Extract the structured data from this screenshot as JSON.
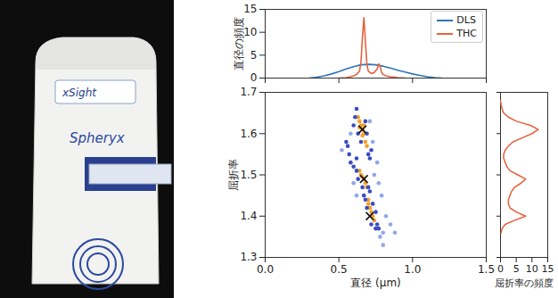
{
  "photo": {
    "brand": "Spheryx",
    "model": "xSight"
  },
  "chart_data": [
    {
      "type": "line",
      "series": [
        {
          "name": "DLS",
          "color": "#2e75b6",
          "x": [
            0.3,
            0.35,
            0.4,
            0.45,
            0.5,
            0.55,
            0.6,
            0.65,
            0.7,
            0.75,
            0.8,
            0.85,
            0.9,
            0.95,
            1.0,
            1.05,
            1.1,
            1.15,
            1.2
          ],
          "values": [
            0.0,
            0.2,
            0.5,
            0.9,
            1.4,
            2.0,
            2.5,
            2.9,
            3.0,
            2.9,
            2.6,
            2.2,
            1.7,
            1.3,
            0.9,
            0.6,
            0.3,
            0.1,
            0.0
          ]
        },
        {
          "name": "THC",
          "color": "#e8603c",
          "x": [
            0.5,
            0.55,
            0.58,
            0.6,
            0.62,
            0.64,
            0.65,
            0.66,
            0.67,
            0.68,
            0.69,
            0.7,
            0.72,
            0.74,
            0.76,
            0.77,
            0.78,
            0.79,
            0.8,
            0.82,
            0.85,
            0.9,
            0.95
          ],
          "values": [
            0.0,
            0.1,
            0.3,
            0.5,
            0.8,
            1.5,
            3.5,
            9.0,
            13.2,
            8.0,
            3.0,
            1.5,
            1.0,
            1.2,
            2.0,
            3.1,
            2.5,
            1.2,
            0.8,
            0.5,
            0.3,
            0.1,
            0.0
          ]
        }
      ],
      "y_label": "直径の頻度",
      "xlim": [
        0,
        1.5
      ],
      "xticks": [
        0,
        0.5,
        1,
        1.5
      ],
      "ylim": [
        0,
        15
      ],
      "yticks": [
        0,
        5,
        10,
        15
      ],
      "legend": "top-right",
      "tick_labels": "y"
    },
    {
      "type": "scatter",
      "x": [
        0.63,
        0.64,
        0.65,
        0.66,
        0.67,
        0.68,
        0.69,
        0.64,
        0.66,
        0.67,
        0.62,
        0.61,
        0.63,
        0.65,
        0.7,
        0.71,
        0.69,
        0.68,
        0.6,
        0.72,
        0.64,
        0.65,
        0.67,
        0.68,
        0.69,
        0.7,
        0.71,
        0.72,
        0.73,
        0.74,
        0.7,
        0.66,
        0.58,
        0.6,
        0.62,
        0.63,
        0.66,
        0.7,
        0.71,
        0.67,
        0.69,
        0.73,
        0.75,
        0.76,
        0.77,
        0.75,
        0.72,
        0.68,
        0.62,
        0.57,
        0.56,
        0.55,
        0.78,
        0.8,
        0.82,
        0.85,
        0.79,
        0.6,
        0.74,
        0.73,
        0.76,
        0.58,
        0.62,
        0.88,
        0.52,
        0.8,
        0.77,
        0.71
      ],
      "y": [
        1.64,
        1.63,
        1.62,
        1.61,
        1.6,
        1.58,
        1.57,
        1.615,
        1.595,
        1.62,
        1.66,
        1.64,
        1.6,
        1.58,
        1.55,
        1.54,
        1.6,
        1.63,
        1.62,
        1.56,
        1.51,
        1.5,
        1.49,
        1.48,
        1.47,
        1.44,
        1.42,
        1.41,
        1.4,
        1.39,
        1.43,
        1.495,
        1.53,
        1.52,
        1.51,
        1.49,
        1.47,
        1.47,
        1.46,
        1.45,
        1.42,
        1.43,
        1.41,
        1.38,
        1.37,
        1.37,
        1.38,
        1.44,
        1.54,
        1.55,
        1.57,
        1.58,
        1.35,
        1.36,
        1.4,
        1.38,
        1.45,
        1.48,
        1.5,
        1.58,
        1.53,
        1.6,
        1.45,
        1.36,
        1.56,
        1.33,
        1.48,
        1.63
      ],
      "colors": [
        "#f0a02c",
        "#f0a02c",
        "#f0a02c",
        "#f0a02c",
        "#f0a02c",
        "#f0a02c",
        "#f0a02c",
        "#f0a02c",
        "#f0a02c",
        "#f0a02c",
        "#3b4cc0",
        "#3b4cc0",
        "#3b4cc0",
        "#3b4cc0",
        "#3b4cc0",
        "#3b4cc0",
        "#3b4cc0",
        "#3b4cc0",
        "#3b4cc0",
        "#3b4cc0",
        "#f0a02c",
        "#f0a02c",
        "#f0a02c",
        "#f0a02c",
        "#f0a02c",
        "#f0a02c",
        "#f0a02c",
        "#f0a02c",
        "#f0a02c",
        "#f0a02c",
        "#f0a02c",
        "#f0a02c",
        "#3b4cc0",
        "#3b4cc0",
        "#3b4cc0",
        "#3b4cc0",
        "#3b4cc0",
        "#3b4cc0",
        "#3b4cc0",
        "#3b4cc0",
        "#3b4cc0",
        "#3b4cc0",
        "#3b4cc0",
        "#3b4cc0",
        "#3b4cc0",
        "#3b4cc0",
        "#3b4cc0",
        "#3b4cc0",
        "#3b4cc0",
        "#3b4cc0",
        "#3b4cc0",
        "#3b4cc0",
        "#8fa8e8",
        "#8fa8e8",
        "#8fa8e8",
        "#8fa8e8",
        "#8fa8e8",
        "#8fa8e8",
        "#8fa8e8",
        "#8fa8e8",
        "#8fa8e8",
        "#8fa8e8",
        "#8fa8e8",
        "#8fa8e8",
        "#8fa8e8",
        "#8fa8e8",
        "#8fa8e8",
        "#8fa8e8"
      ],
      "centers": {
        "x": [
          0.66,
          0.67,
          0.71
        ],
        "y": [
          1.61,
          1.49,
          1.4
        ],
        "marker": "x",
        "color": "#111111"
      },
      "x_label": "直径 (µm)",
      "y_label": "屈折率",
      "xlim": [
        0,
        1.5
      ],
      "xticks": [
        {
          "value": 0,
          "label": "0.0"
        },
        0.5,
        {
          "value": 1,
          "label": "1.0"
        },
        1.5
      ],
      "ylim": [
        1.3,
        1.7
      ],
      "yticks": [
        1.3,
        1.4,
        1.5,
        1.6,
        1.7
      ]
    },
    {
      "type": "line",
      "orientation": "horizontal",
      "y": [
        1.36,
        1.37,
        1.38,
        1.39,
        1.4,
        1.41,
        1.42,
        1.43,
        1.44,
        1.45,
        1.46,
        1.47,
        1.48,
        1.49,
        1.5,
        1.51,
        1.52,
        1.53,
        1.54,
        1.55,
        1.56,
        1.57,
        1.58,
        1.59,
        1.6,
        1.61,
        1.62,
        1.63,
        1.64,
        1.65,
        1.66,
        1.67,
        1.68
      ],
      "values": [
        0.2,
        0.5,
        1.5,
        4.5,
        8.0,
        5.0,
        3.0,
        2.5,
        2.5,
        3.0,
        3.5,
        4.5,
        6.5,
        8.0,
        5.5,
        3.0,
        2.0,
        1.5,
        1.0,
        1.0,
        1.5,
        2.5,
        4.0,
        7.0,
        10.0,
        12.0,
        9.5,
        5.0,
        2.5,
        1.0,
        0.5,
        0.2,
        0.0
      ],
      "color": "#e8603c",
      "x_label": "屈折率の頻度",
      "xlim": [
        0,
        15
      ],
      "xticks": [
        0,
        5,
        10,
        15
      ],
      "ylim": [
        1.3,
        1.7
      ],
      "yticks": [
        1.3,
        1.4,
        1.5,
        1.6,
        1.7
      ],
      "tick_labels": "x"
    }
  ]
}
